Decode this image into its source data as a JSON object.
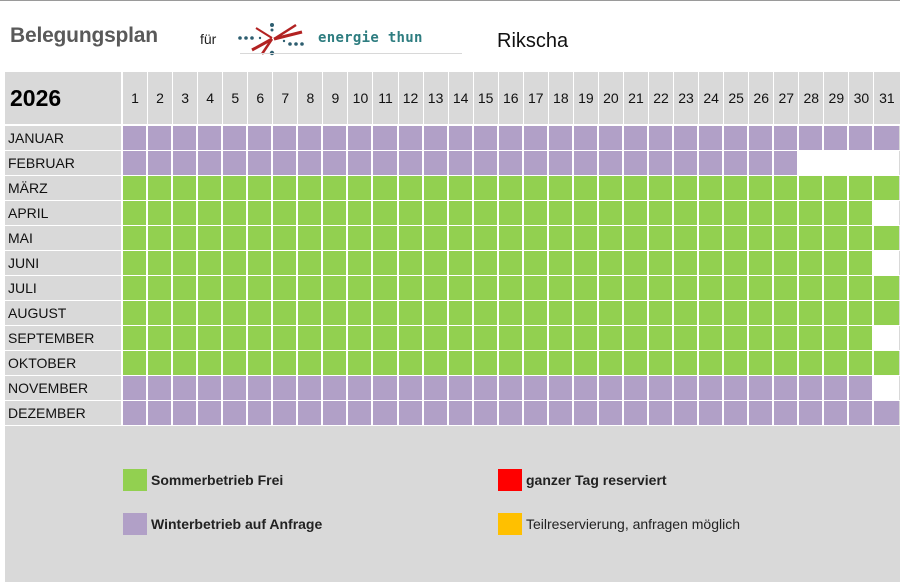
{
  "header": {
    "title": "Belegungsplan",
    "for_label": "für",
    "logo_text": "energie thun",
    "object_name": "Rikscha"
  },
  "calendar": {
    "year": "2026",
    "days": [
      "1",
      "2",
      "3",
      "4",
      "5",
      "6",
      "7",
      "8",
      "9",
      "10",
      "11",
      "12",
      "13",
      "14",
      "15",
      "16",
      "17",
      "18",
      "19",
      "20",
      "21",
      "22",
      "23",
      "24",
      "25",
      "26",
      "27",
      "28",
      "29",
      "30",
      "31"
    ],
    "months": [
      {
        "name": "JANUAR",
        "days_in_month": 31,
        "status": "winter"
      },
      {
        "name": "FEBRUAR",
        "days_in_month": 27,
        "status": "winter"
      },
      {
        "name": "MÄRZ",
        "days_in_month": 31,
        "status": "sommer"
      },
      {
        "name": "APRIL",
        "days_in_month": 30,
        "status": "sommer"
      },
      {
        "name": "MAI",
        "days_in_month": 31,
        "status": "sommer"
      },
      {
        "name": "JUNI",
        "days_in_month": 30,
        "status": "sommer"
      },
      {
        "name": "JULI",
        "days_in_month": 31,
        "status": "sommer"
      },
      {
        "name": "AUGUST",
        "days_in_month": 31,
        "status": "sommer"
      },
      {
        "name": "SEPTEMBER",
        "days_in_month": 30,
        "status": "sommer"
      },
      {
        "name": "OKTOBER",
        "days_in_month": 31,
        "status": "sommer"
      },
      {
        "name": "NOVEMBER",
        "days_in_month": 30,
        "status": "winter"
      },
      {
        "name": "DEZEMBER",
        "days_in_month": 31,
        "status": "winter"
      }
    ]
  },
  "legend": [
    {
      "label": "Sommerbetrieb Frei",
      "color": "#92D050",
      "bold": true
    },
    {
      "label": "Winterbetrieb auf Anfrage",
      "color": "#B1A0C7",
      "bold": true
    },
    {
      "label": "ganzer Tag reserviert",
      "color": "#FF0000",
      "bold": true
    },
    {
      "label": "Teilreservierung, anfragen möglich",
      "color": "#FFC000",
      "bold": false
    }
  ],
  "colors": {
    "sommer": "#92D050",
    "winter": "#B1A0C7",
    "reserved": "#FF0000",
    "partial": "#FFC000",
    "empty": "#FFFFFF",
    "sheet_bg": "#D9D9D9"
  }
}
